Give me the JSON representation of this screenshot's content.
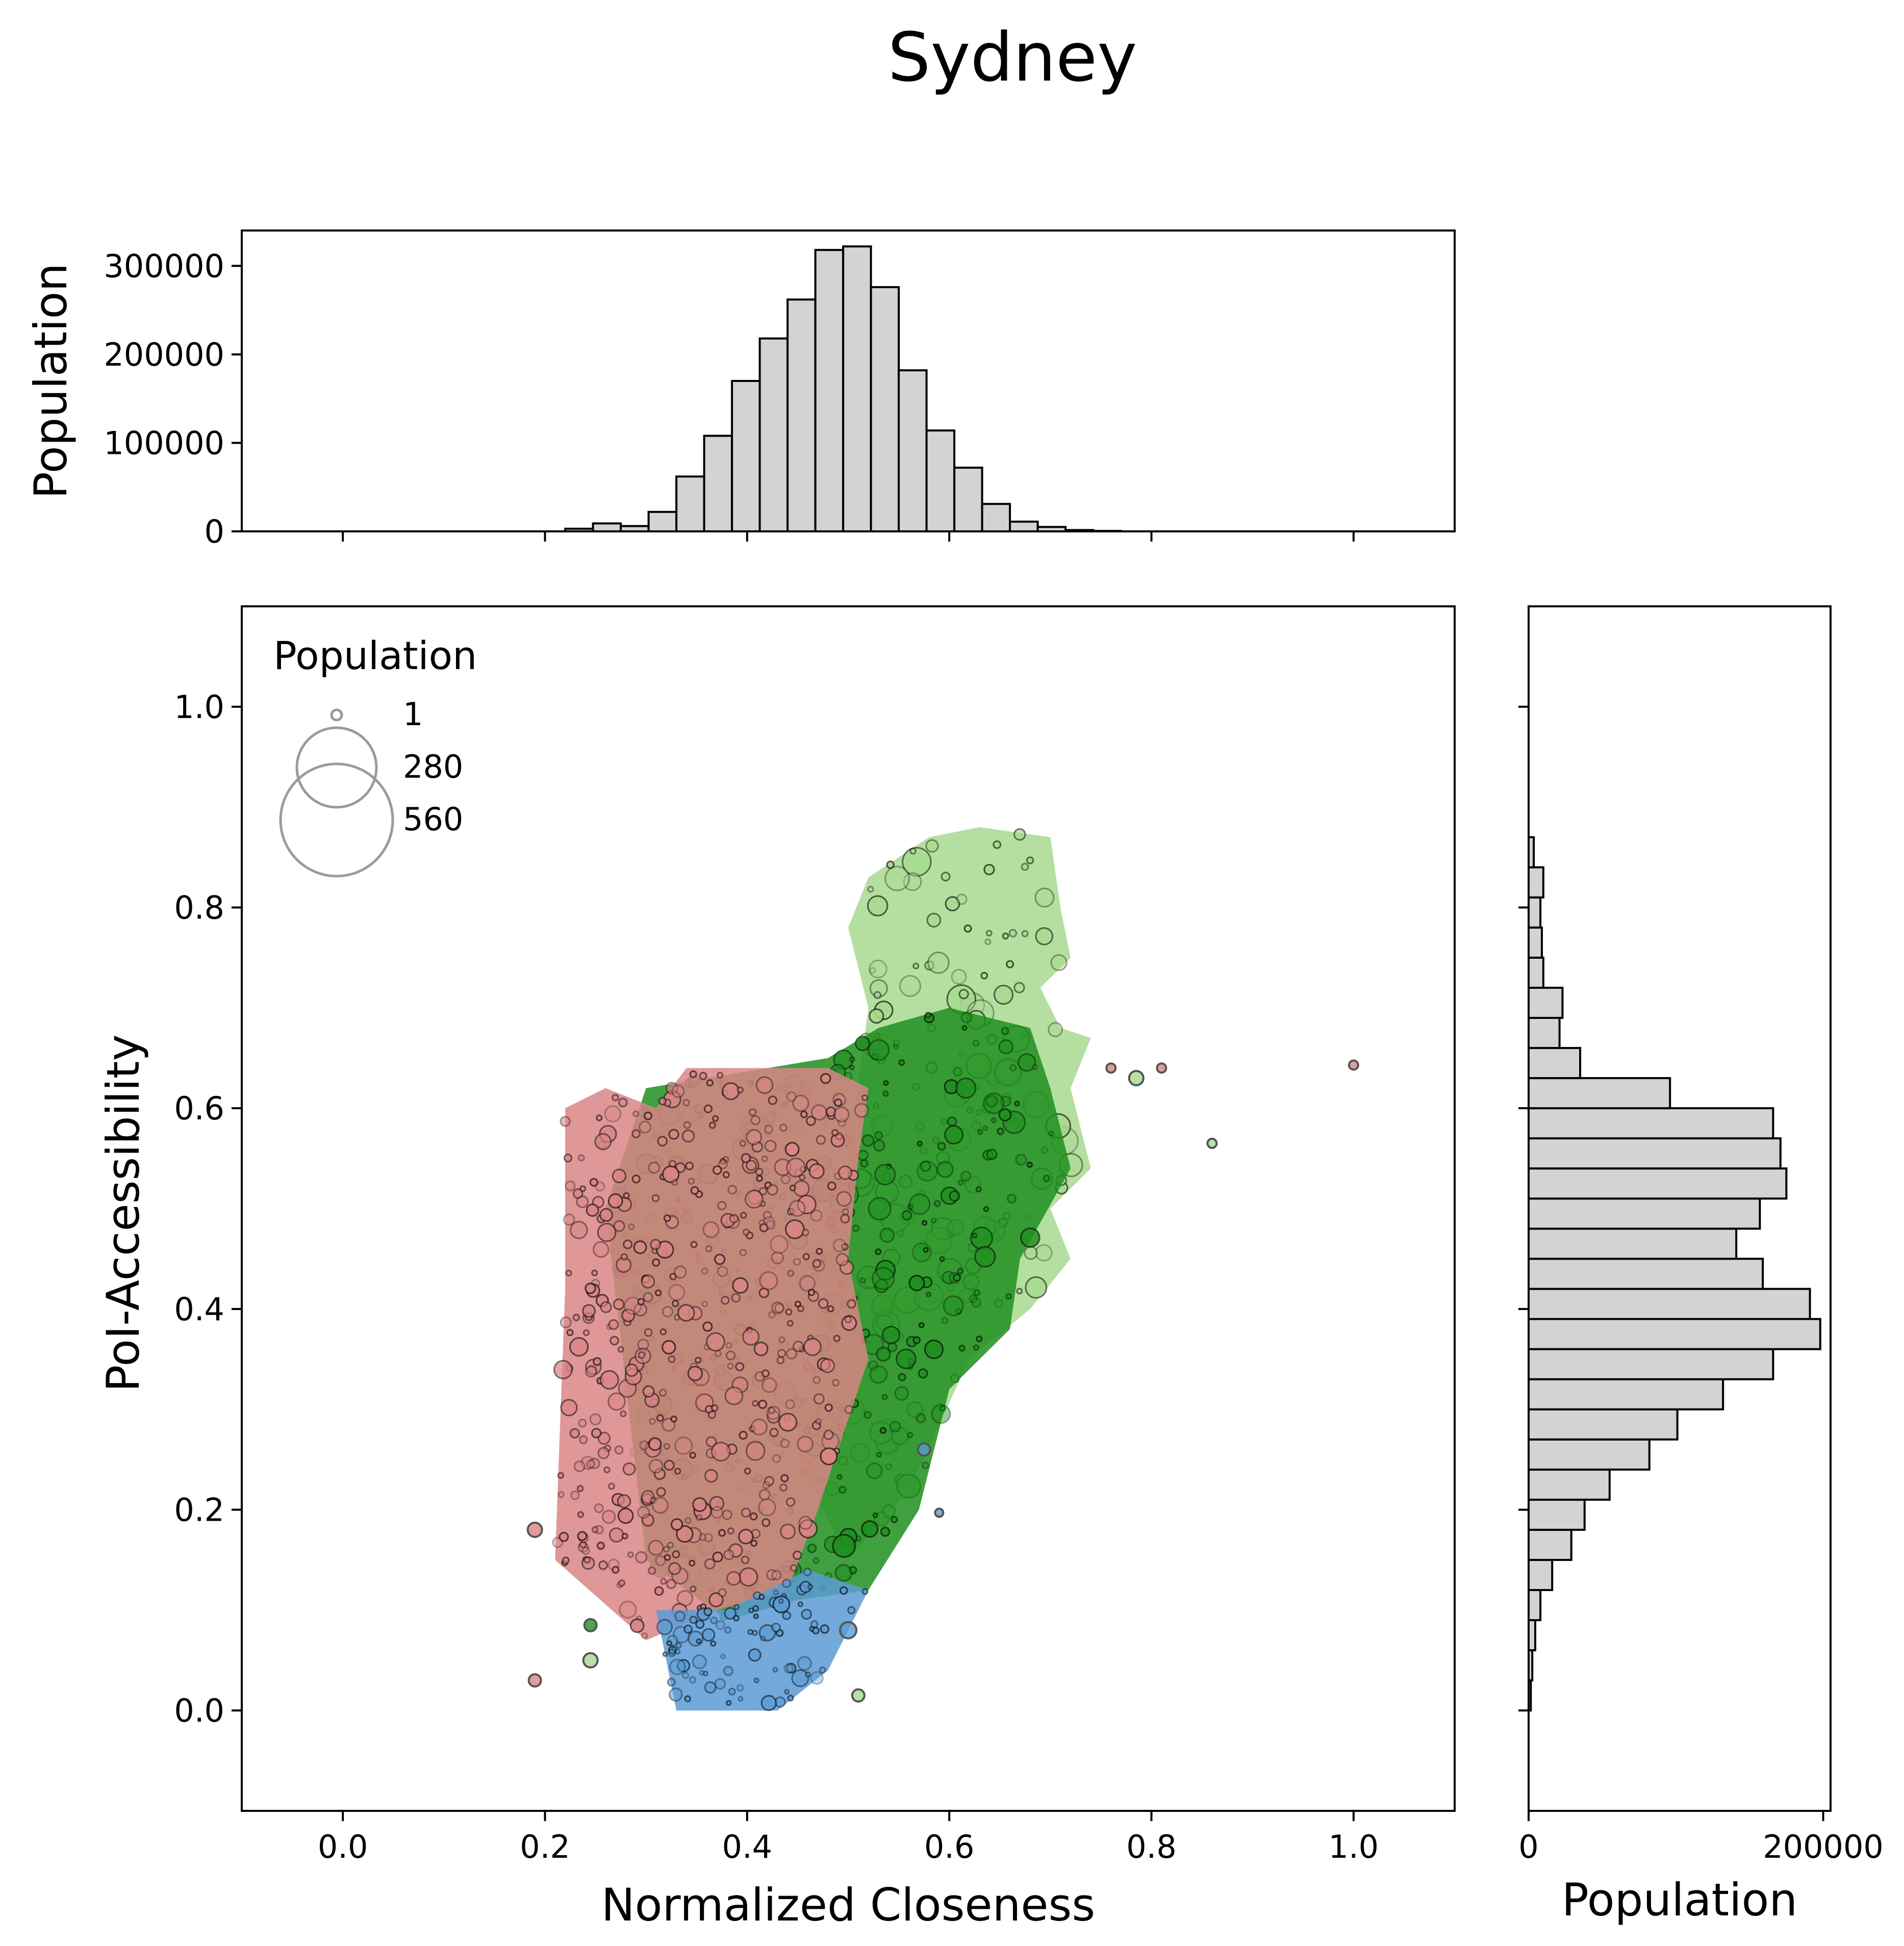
{
  "chart_data": {
    "type": "scatter",
    "title": "Sydney",
    "colors": {
      "pink": "#d98585",
      "dark_green": "#1f8f1f",
      "light_green": "#a7d98f",
      "blue": "#5a9bd5",
      "hist_fill": "#d3d3d3",
      "edge": "#000000"
    },
    "main": {
      "xlabel": "Normalized Closeness",
      "ylabel": "PoI-Accessibility",
      "xlim": [
        -0.1,
        1.1
      ],
      "ylim": [
        -0.1,
        1.1
      ],
      "xticks": [
        "0.0",
        "0.2",
        "0.4",
        "0.6",
        "0.8",
        "1.0"
      ],
      "yticks": [
        "0.0",
        "0.2",
        "0.4",
        "0.6",
        "0.8",
        "1.0"
      ],
      "legend": {
        "title": "Population",
        "placement": "top-left",
        "entries": [
          {
            "label": "1",
            "value": 1
          },
          {
            "label": "280",
            "value": 280
          },
          {
            "label": "560",
            "value": 560
          }
        ]
      },
      "clusters": [
        {
          "color": "light_green",
          "polygon": [
            [
              0.45,
              0.25
            ],
            [
              0.5,
              0.55
            ],
            [
              0.52,
              0.7
            ],
            [
              0.5,
              0.78
            ],
            [
              0.52,
              0.83
            ],
            [
              0.58,
              0.87
            ],
            [
              0.63,
              0.88
            ],
            [
              0.7,
              0.87
            ],
            [
              0.71,
              0.8
            ],
            [
              0.72,
              0.75
            ],
            [
              0.69,
              0.72
            ],
            [
              0.71,
              0.68
            ],
            [
              0.74,
              0.67
            ],
            [
              0.72,
              0.62
            ],
            [
              0.74,
              0.54
            ],
            [
              0.7,
              0.5
            ],
            [
              0.72,
              0.45
            ],
            [
              0.68,
              0.4
            ],
            [
              0.62,
              0.35
            ],
            [
              0.56,
              0.22
            ],
            [
              0.5,
              0.15
            ]
          ],
          "count": 160,
          "radius": [
            5,
            28
          ]
        },
        {
          "color": "dark_green",
          "polygon": [
            [
              0.3,
              0.15
            ],
            [
              0.26,
              0.5
            ],
            [
              0.3,
              0.62
            ],
            [
              0.48,
              0.65
            ],
            [
              0.53,
              0.68
            ],
            [
              0.6,
              0.7
            ],
            [
              0.68,
              0.68
            ],
            [
              0.7,
              0.62
            ],
            [
              0.72,
              0.54
            ],
            [
              0.67,
              0.45
            ],
            [
              0.66,
              0.38
            ],
            [
              0.6,
              0.32
            ],
            [
              0.57,
              0.2
            ],
            [
              0.52,
              0.12
            ],
            [
              0.45,
              0.11
            ],
            [
              0.38,
              0.09
            ]
          ],
          "count": 360,
          "radius": [
            4,
            22
          ]
        },
        {
          "color": "pink",
          "polygon": [
            [
              0.21,
              0.15
            ],
            [
              0.22,
              0.42
            ],
            [
              0.22,
              0.6
            ],
            [
              0.26,
              0.62
            ],
            [
              0.31,
              0.6
            ],
            [
              0.34,
              0.64
            ],
            [
              0.43,
              0.64
            ],
            [
              0.48,
              0.64
            ],
            [
              0.52,
              0.62
            ],
            [
              0.51,
              0.55
            ],
            [
              0.5,
              0.45
            ],
            [
              0.52,
              0.35
            ],
            [
              0.47,
              0.2
            ],
            [
              0.44,
              0.12
            ],
            [
              0.37,
              0.1
            ],
            [
              0.3,
              0.07
            ]
          ],
          "count": 470,
          "radius": [
            5,
            18
          ]
        },
        {
          "color": "blue",
          "polygon": [
            [
              0.31,
              0.1
            ],
            [
              0.33,
              0.0
            ],
            [
              0.43,
              0.0
            ],
            [
              0.48,
              0.04
            ],
            [
              0.52,
              0.12
            ],
            [
              0.46,
              0.14
            ],
            [
              0.38,
              0.1
            ]
          ],
          "count": 90,
          "radius": [
            4,
            16
          ]
        }
      ],
      "points": [
        {
          "x": 0.785,
          "y": 0.63,
          "r": 14,
          "color": "light_green"
        },
        {
          "x": 0.81,
          "y": 0.64,
          "r": 9,
          "color": "pink"
        },
        {
          "x": 0.76,
          "y": 0.64,
          "r": 9,
          "color": "pink"
        },
        {
          "x": 0.86,
          "y": 0.565,
          "r": 9,
          "color": "light_green"
        },
        {
          "x": 1.0,
          "y": 0.643,
          "r": 9,
          "color": "pink"
        },
        {
          "x": 0.59,
          "y": 0.197,
          "r": 8,
          "color": "blue"
        },
        {
          "x": 0.19,
          "y": 0.03,
          "r": 12,
          "color": "pink"
        },
        {
          "x": 0.19,
          "y": 0.18,
          "r": 14,
          "color": "pink"
        },
        {
          "x": 0.51,
          "y": 0.015,
          "r": 12,
          "color": "light_green"
        },
        {
          "x": 0.5,
          "y": 0.08,
          "r": 16,
          "color": "blue"
        },
        {
          "x": 0.245,
          "y": 0.05,
          "r": 14,
          "color": "light_green"
        },
        {
          "x": 0.245,
          "y": 0.085,
          "r": 12,
          "color": "dark_green"
        },
        {
          "x": 0.575,
          "y": 0.26,
          "r": 12,
          "color": "blue"
        }
      ]
    },
    "top_histogram": {
      "ylabel": "Population",
      "yticks": [
        "0",
        "100000",
        "200000",
        "300000"
      ],
      "ylim": [
        0,
        340000
      ],
      "bin_width": 0.0275,
      "bins_start": 0.22,
      "values": [
        3000,
        9000,
        6000,
        22000,
        62000,
        108000,
        170000,
        218000,
        262000,
        318000,
        322000,
        276000,
        182000,
        114000,
        72000,
        31000,
        11000,
        5000,
        1500,
        500
      ]
    },
    "right_histogram": {
      "xlabel": "Population",
      "xticks": [
        "0",
        "200000"
      ],
      "xlim": [
        0,
        205000
      ],
      "bin_height": 0.03,
      "bins_start": 0.0,
      "values": [
        1500,
        2500,
        4500,
        8000,
        16000,
        29000,
        38000,
        55000,
        82000,
        101000,
        132000,
        166000,
        198000,
        191000,
        159000,
        141000,
        157000,
        175000,
        171000,
        166000,
        96000,
        35000,
        21000,
        23000,
        10000,
        9000,
        8000,
        10000,
        3500
      ]
    }
  }
}
